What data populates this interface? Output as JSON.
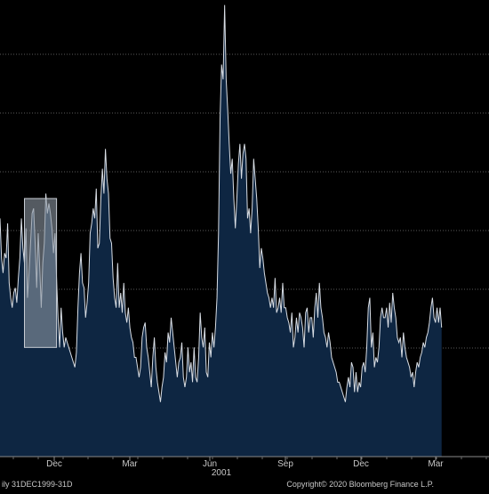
{
  "chart_data": {
    "type": "area",
    "grid": true,
    "legend": "none",
    "x_ticks": [
      "Dec",
      "Mar",
      "Jun",
      "Sep",
      "Dec",
      "Mar"
    ],
    "year_labels": [
      "2001"
    ],
    "footer_left": "ily 31DEC1999-31D",
    "footer_right": "Copyright© 2020 Bloomberg Finance L.P.",
    "colors": {
      "background": "#000000",
      "area_fill": "#0e2642",
      "line": "#d8dde4",
      "grid": "#5a5a5a",
      "highlight_fill": "#8c96a2",
      "highlight_stroke": "#c8cdd4",
      "text": "#c8c8c8"
    },
    "x_range": [
      0,
      320
    ],
    "ylim": [
      0,
      460
    ],
    "series": [
      {
        "values": [
          240,
          200,
          185,
          205,
          200,
          235,
          175,
          160,
          150,
          165,
          170,
          155,
          180,
          200,
          240,
          210,
          195,
          230,
          160,
          185,
          215,
          245,
          250,
          215,
          170,
          225,
          190,
          150,
          195,
          215,
          265,
          245,
          255,
          245,
          230,
          205,
          225,
          180,
          140,
          110,
          150,
          125,
          110,
          120,
          115,
          110,
          105,
          100,
          95,
          90,
          105,
          150,
          185,
          205,
          175,
          170,
          140,
          155,
          175,
          225,
          235,
          250,
          240,
          270,
          210,
          215,
          260,
          290,
          265,
          310,
          280,
          265,
          220,
          215,
          180,
          160,
          150,
          195,
          150,
          165,
          145,
          175,
          145,
          135,
          150,
          130,
          120,
          115,
          100,
          100,
          90,
          80,
          90,
          120,
          130,
          135,
          110,
          100,
          85,
          70,
          100,
          120,
          90,
          75,
          65,
          55,
          70,
          80,
          105,
          95,
          125,
          115,
          140,
          125,
          110,
          95,
          80,
          95,
          100,
          115,
          80,
          70,
          80,
          110,
          85,
          95,
          75,
          110,
          80,
          75,
          100,
          145,
          120,
          110,
          130,
          85,
          80,
          115,
          100,
          125,
          110,
          130,
          160,
          225,
          340,
          395,
          380,
          455,
          380,
          350,
          315,
          285,
          300,
          260,
          230,
          260,
          295,
          315,
          280,
          305,
          315,
          300,
          240,
          250,
          225,
          250,
          300,
          280,
          260,
          230,
          190,
          210,
          200,
          185,
          175,
          165,
          160,
          150,
          160,
          150,
          180,
          145,
          150,
          160,
          145,
          175,
          150,
          150,
          140,
          135,
          125,
          145,
          110,
          120,
          140,
          125,
          145,
          140,
          130,
          110,
          145,
          150,
          125,
          140,
          140,
          120,
          150,
          165,
          140,
          175,
          150,
          140,
          125,
          120,
          110,
          125,
          115,
          100,
          95,
          90,
          85,
          75,
          75,
          70,
          65,
          60,
          55,
          70,
          80,
          70,
          95,
          90,
          65,
          85,
          65,
          75,
          70,
          90,
          95,
          85,
          110,
          150,
          160,
          110,
          125,
          90,
          100,
          95,
          110,
          140,
          150,
          140,
          140,
          150,
          130,
          155,
          135,
          165,
          150,
          140,
          120,
          115,
          120,
          100,
          125,
          110,
          100,
          95,
          90,
          80,
          85,
          70,
          85,
          95,
          90,
          100,
          105,
          115,
          110,
          120,
          125,
          135,
          150,
          160,
          140,
          135,
          150,
          135,
          150,
          130
        ]
      }
    ],
    "highlight": {
      "x_range": [
        16,
        37
      ],
      "y_range": [
        110,
        260
      ]
    }
  }
}
